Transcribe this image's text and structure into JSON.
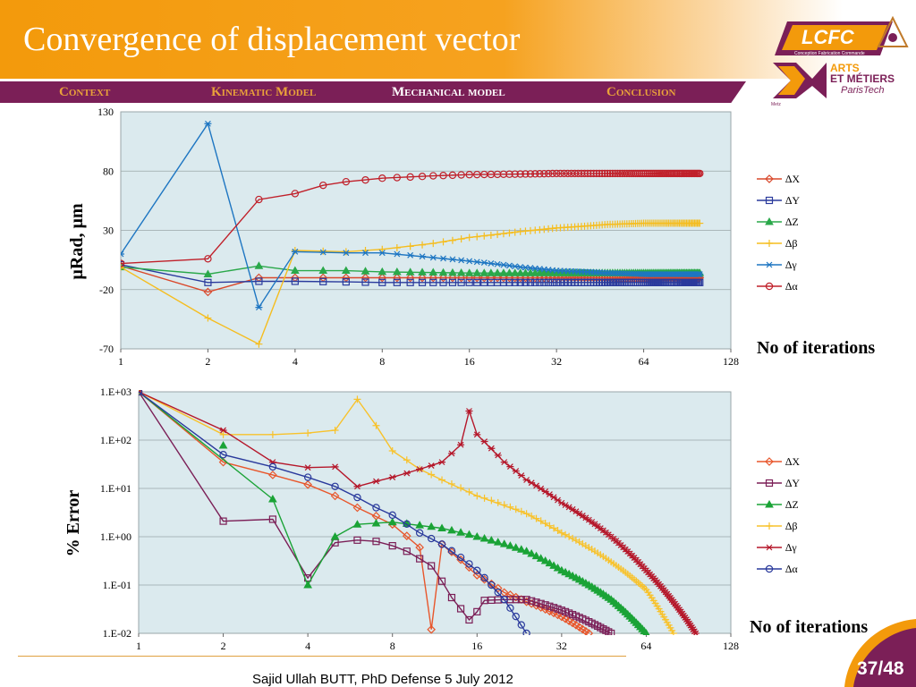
{
  "slide": {
    "title": "Convergence of displacement vector",
    "nav": [
      "Context",
      "Kinematic Model",
      "Mechanical model",
      "Conclusion"
    ],
    "nav_active": 2,
    "footer": "Sajid Ullah BUTT, PhD Defense 5 July 2012",
    "page": "37/48",
    "colors": {
      "orange": "#f39a0b",
      "purple": "#7b1f57",
      "plot_bg": "#dbeaee"
    }
  },
  "logos": {
    "lcfc_text": "LCFC",
    "lcfc_sub": "Conception Fabrication Commande",
    "am_line1": "ARTS",
    "am_line2": "ET MÉTIERS",
    "am_line3": "ParisTech",
    "am_small": "Metz"
  },
  "chart_data": [
    {
      "type": "line",
      "x_scale": "log2",
      "x_ticks": [
        "1",
        "2",
        "4",
        "8",
        "16",
        "32",
        "64",
        "128"
      ],
      "y_ticks": [
        "130",
        "80",
        "30",
        "-20",
        "-70"
      ],
      "ylim": [
        -70,
        130
      ],
      "xlim": [
        1,
        128
      ],
      "ylabel": "µRad, µm",
      "xlabel": "No of iterations",
      "legend_position": "right",
      "series": [
        {
          "name": "∆X",
          "color": "#d9482b",
          "marker": "diamond",
          "x": [
            1,
            2,
            3,
            4,
            6,
            8,
            16,
            32,
            100
          ],
          "y": [
            0,
            -22,
            -10,
            -10,
            -10,
            -10,
            -10,
            -10,
            -10
          ]
        },
        {
          "name": "∆Y",
          "color": "#2a3a9c",
          "marker": "square",
          "x": [
            1,
            2,
            3,
            4,
            6,
            8,
            16,
            32,
            100
          ],
          "y": [
            1,
            -14,
            -13,
            -13,
            -13.5,
            -14,
            -14,
            -14,
            -14
          ]
        },
        {
          "name": "∆Z",
          "color": "#2aa84a",
          "marker": "triangle",
          "x": [
            1,
            2,
            3,
            4,
            6,
            8,
            16,
            32,
            100
          ],
          "y": [
            -1,
            -7,
            0,
            -4,
            -4,
            -5,
            -6,
            -6,
            -6
          ]
        },
        {
          "name": "∆β",
          "color": "#f5bd1f",
          "marker": "plus",
          "x": [
            1,
            2,
            3,
            4,
            6,
            8,
            12,
            16,
            24,
            32,
            48,
            64,
            100
          ],
          "y": [
            -1,
            -44,
            -66,
            13,
            12,
            14,
            19,
            24,
            29,
            32,
            35,
            36,
            36
          ]
        },
        {
          "name": "∆γ",
          "color": "#1e76c2",
          "marker": "star",
          "x": [
            1,
            2,
            3,
            4,
            6,
            8,
            12,
            16,
            24,
            32,
            48,
            64,
            100
          ],
          "y": [
            10,
            120,
            -35,
            12,
            11,
            11,
            7,
            4,
            -1,
            -4,
            -6,
            -7,
            -7
          ]
        },
        {
          "name": "∆α",
          "color": "#c0202a",
          "marker": "circle",
          "x": [
            1,
            2,
            3,
            4,
            5,
            6,
            8,
            12,
            16,
            24,
            32,
            48,
            64,
            100
          ],
          "y": [
            2,
            6,
            56,
            61,
            68,
            71,
            74,
            76,
            77,
            77.5,
            78,
            78,
            78,
            78
          ]
        }
      ]
    },
    {
      "type": "line",
      "x_scale": "log2",
      "y_scale": "log10",
      "x_ticks": [
        "1",
        "2",
        "4",
        "8",
        "16",
        "32",
        "64",
        "128"
      ],
      "y_ticks": [
        "1.E+03",
        "1.E+02",
        "1.E+01",
        "1.E+00",
        "1.E-01",
        "1.E-02"
      ],
      "ylim": [
        0.01,
        1000
      ],
      "xlim": [
        1,
        128
      ],
      "ylabel": "% Error",
      "xlabel": "No of iterations",
      "legend_position": "right",
      "series": [
        {
          "name": "∆X",
          "color": "#e8562b",
          "marker": "diamond",
          "x": [
            1,
            2,
            3,
            4,
            5,
            6,
            8,
            10,
            11,
            12,
            16,
            20,
            24,
            32,
            40
          ],
          "y": [
            1000,
            35,
            19,
            12,
            7,
            4,
            1.8,
            0.6,
            0.012,
            0.7,
            0.16,
            0.07,
            0.045,
            0.022,
            0.01
          ]
        },
        {
          "name": "∆Y",
          "color": "#7b1f57",
          "marker": "square",
          "x": [
            1,
            2,
            3,
            4,
            5,
            6,
            7,
            8,
            9,
            10,
            11,
            12,
            13,
            15,
            16,
            17,
            20,
            24,
            32,
            48
          ],
          "y": [
            1000,
            2.1,
            2.3,
            0.14,
            0.75,
            0.85,
            0.8,
            0.65,
            0.5,
            0.35,
            0.25,
            0.12,
            0.055,
            0.019,
            0.028,
            0.048,
            0.05,
            0.05,
            0.03,
            0.01
          ]
        },
        {
          "name": "∆Z",
          "color": "#1aa336",
          "marker": "triangle",
          "x": [
            1,
            3,
            4,
            5,
            6,
            8,
            12,
            16,
            24,
            32,
            48,
            64
          ],
          "y": [
            1000,
            6,
            0.1,
            1,
            1.8,
            2,
            1.5,
            1,
            0.5,
            0.2,
            0.05,
            0.01
          ]
        },
        {
          "name": "∆β",
          "color": "#f8c22b",
          "marker": "plus",
          "x": [
            1,
            2,
            3,
            4,
            5,
            6,
            7,
            8,
            10,
            12,
            16,
            24,
            32,
            48,
            64,
            80
          ],
          "y": [
            1000,
            130,
            130,
            140,
            160,
            700,
            200,
            60,
            25,
            15,
            7,
            3,
            1.2,
            0.3,
            0.08,
            0.01
          ]
        },
        {
          "name": "∆γ",
          "color": "#b5172a",
          "marker": "star",
          "x": [
            1,
            2,
            3,
            4,
            5,
            6,
            7,
            8,
            10,
            12,
            14,
            15,
            16,
            20,
            24,
            32,
            48,
            64,
            96
          ],
          "y": [
            1000,
            160,
            35,
            27,
            28,
            11,
            14,
            17,
            25,
            35,
            80,
            400,
            130,
            35,
            15,
            5,
            1,
            0.2,
            0.01
          ]
        },
        {
          "name": "∆α",
          "color": "#2a3a9c",
          "marker": "circle",
          "x": [
            1,
            2,
            3,
            4,
            5,
            6,
            7,
            8,
            10,
            12,
            16,
            20,
            24
          ],
          "y": [
            1000,
            50,
            28,
            17,
            11,
            6.5,
            4,
            2.8,
            1.2,
            0.7,
            0.2,
            0.05,
            0.01
          ]
        }
      ]
    }
  ]
}
